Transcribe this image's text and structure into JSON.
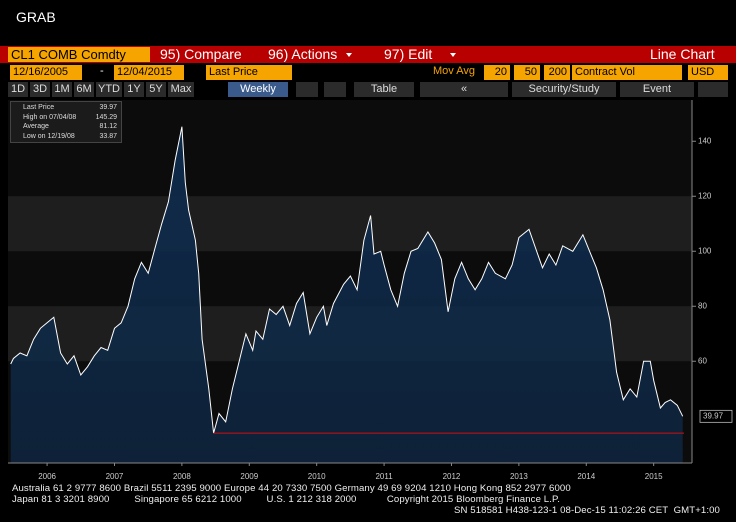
{
  "title": "GRAB",
  "toolbar": {
    "security": "CL1 COMB Comdty",
    "compare": "95) Compare",
    "actions": "96) Actions",
    "edit": "97) Edit",
    "chart_type": "Line Chart"
  },
  "controls": {
    "start_date": "12/16/2005",
    "dash": "-",
    "end_date": "12/04/2015",
    "field": "Last Price",
    "mov_avg": "Mov Avg",
    "ma": [
      "20",
      "50",
      "200"
    ],
    "volume": "Contract Vol",
    "currency": "USD"
  },
  "periods": [
    "1D",
    "3D",
    "1M",
    "6M",
    "YTD",
    "1Y",
    "5Y",
    "Max"
  ],
  "frequency": "Weekly",
  "table": "Table",
  "nav": "«",
  "study": "Security/Study",
  "event": "Event",
  "chart_data": {
    "type": "line",
    "color": "#ffffff",
    "fill": "#0e2a4a",
    "legend": [
      {
        "label": "Last Price",
        "value": 39.97
      },
      {
        "label": "High on 07/04/08",
        "value": 145.29
      },
      {
        "label": "Average",
        "value": 81.12
      },
      {
        "label": "Low on 12/19/08",
        "value": 33.87
      }
    ],
    "x": [
      2005.96,
      2006.0,
      2006.1,
      2006.2,
      2006.3,
      2006.4,
      2006.5,
      2006.6,
      2006.7,
      2006.8,
      2006.9,
      2007.0,
      2007.1,
      2007.2,
      2007.3,
      2007.4,
      2007.5,
      2007.6,
      2007.7,
      2007.8,
      2007.9,
      2008.0,
      2008.1,
      2008.2,
      2008.3,
      2008.4,
      2008.5,
      2008.55,
      2008.6,
      2008.7,
      2008.75,
      2008.8,
      2008.9,
      2008.97,
      2009.05,
      2009.15,
      2009.25,
      2009.35,
      2009.45,
      2009.55,
      2009.6,
      2009.7,
      2009.8,
      2009.9,
      2010.0,
      2010.1,
      2010.2,
      2010.3,
      2010.4,
      2010.5,
      2010.6,
      2010.65,
      2010.75,
      2010.9,
      2011.0,
      2011.1,
      2011.2,
      2011.3,
      2011.35,
      2011.45,
      2011.5,
      2011.6,
      2011.7,
      2011.8,
      2011.9,
      2012.0,
      2012.15,
      2012.25,
      2012.35,
      2012.45,
      2012.55,
      2012.65,
      2012.75,
      2012.85,
      2012.95,
      2013.05,
      2013.15,
      2013.3,
      2013.4,
      2013.5,
      2013.65,
      2013.75,
      2013.85,
      2013.95,
      2014.05,
      2014.15,
      2014.3,
      2014.45,
      2014.55,
      2014.65,
      2014.75,
      2014.85,
      2014.95,
      2015.05,
      2015.15,
      2015.25,
      2015.35,
      2015.45,
      2015.5,
      2015.6,
      2015.67,
      2015.75,
      2015.85,
      2015.93
    ],
    "values": [
      59,
      61,
      63,
      62,
      68,
      72,
      74,
      76,
      63,
      59,
      62,
      55,
      58,
      62,
      65,
      64,
      72,
      74,
      80,
      90,
      96,
      92,
      101,
      110,
      118,
      133,
      145.29,
      125,
      115,
      104,
      92,
      68,
      50,
      33.87,
      41,
      38,
      50,
      60,
      70,
      64,
      71,
      68,
      79,
      77,
      80,
      73,
      81,
      85,
      70,
      76,
      80,
      73,
      81,
      88,
      91,
      86,
      104,
      113,
      99,
      100,
      95,
      86,
      80,
      92,
      100,
      101,
      107,
      103,
      97,
      78,
      90,
      96,
      90,
      86,
      90,
      96,
      92,
      90,
      95,
      105,
      108,
      101,
      94,
      99,
      95,
      102,
      100,
      106,
      100,
      94,
      86,
      75,
      56,
      46,
      50,
      47,
      60,
      60,
      53,
      43,
      45,
      46,
      44,
      39.97
    ],
    "xlim": [
      2005.92,
      2015.95
    ],
    "ylim": [
      23,
      155
    ],
    "xticks": [
      {
        "value": 2006.5,
        "label": "2006"
      },
      {
        "value": 2007.5,
        "label": "2007"
      },
      {
        "value": 2008.5,
        "label": "2008"
      },
      {
        "value": 2009.5,
        "label": "2009"
      },
      {
        "value": 2010.5,
        "label": "2010"
      },
      {
        "value": 2011.5,
        "label": "2011"
      },
      {
        "value": 2012.5,
        "label": "2012"
      },
      {
        "value": 2013.5,
        "label": "2013"
      },
      {
        "value": 2014.5,
        "label": "2014"
      },
      {
        "value": 2015.5,
        "label": "2015"
      }
    ],
    "yticks": [
      60,
      80,
      100,
      120,
      140
    ],
    "grid": false
  },
  "footer": [
    "Australia 61 2 9777 8600 Brazil 5511 2395 9000 Europe 44 20 7330 7500 Germany 49 69 9204 1210 Hong Kong 852 2977 6000",
    "Japan 81 3 3201 8900         Singapore 65 6212 1000         U.S. 1 212 318 2000           Copyright 2015 Bloomberg Finance L.P.",
    "SN 518581 H438-123-1 08-Dec-15 11:02:26 CET  GMT+1:00"
  ]
}
